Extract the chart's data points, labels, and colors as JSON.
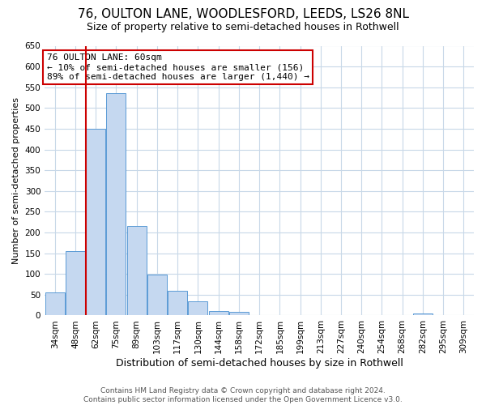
{
  "title": "76, OULTON LANE, WOODLESFORD, LEEDS, LS26 8NL",
  "subtitle": "Size of property relative to semi-detached houses in Rothwell",
  "xlabel": "Distribution of semi-detached houses by size in Rothwell",
  "ylabel": "Number of semi-detached properties",
  "bar_labels": [
    "34sqm",
    "48sqm",
    "62sqm",
    "75sqm",
    "89sqm",
    "103sqm",
    "117sqm",
    "130sqm",
    "144sqm",
    "158sqm",
    "172sqm",
    "185sqm",
    "199sqm",
    "213sqm",
    "227sqm",
    "240sqm",
    "254sqm",
    "268sqm",
    "282sqm",
    "295sqm",
    "309sqm"
  ],
  "bar_values": [
    55,
    156,
    450,
    535,
    215,
    98,
    60,
    35,
    10,
    8,
    0,
    0,
    0,
    0,
    0,
    0,
    0,
    0,
    5,
    0,
    0
  ],
  "bar_color": "#c5d8f0",
  "bar_edge_color": "#5b9bd5",
  "vline_index": 2,
  "vline_color": "#cc0000",
  "ylim": [
    0,
    650
  ],
  "yticks": [
    0,
    50,
    100,
    150,
    200,
    250,
    300,
    350,
    400,
    450,
    500,
    550,
    600,
    650
  ],
  "annotation_title": "76 OULTON LANE: 60sqm",
  "annotation_line1": "← 10% of semi-detached houses are smaller (156)",
  "annotation_line2": "89% of semi-detached houses are larger (1,440) →",
  "annotation_box_color": "#cc0000",
  "footer1": "Contains HM Land Registry data © Crown copyright and database right 2024.",
  "footer2": "Contains public sector information licensed under the Open Government Licence v3.0.",
  "background_color": "#ffffff",
  "grid_color": "#c8d8e8",
  "title_fontsize": 11,
  "subtitle_fontsize": 9,
  "xlabel_fontsize": 9,
  "ylabel_fontsize": 8,
  "tick_fontsize": 7.5,
  "footer_fontsize": 6.5,
  "annotation_fontsize": 8
}
